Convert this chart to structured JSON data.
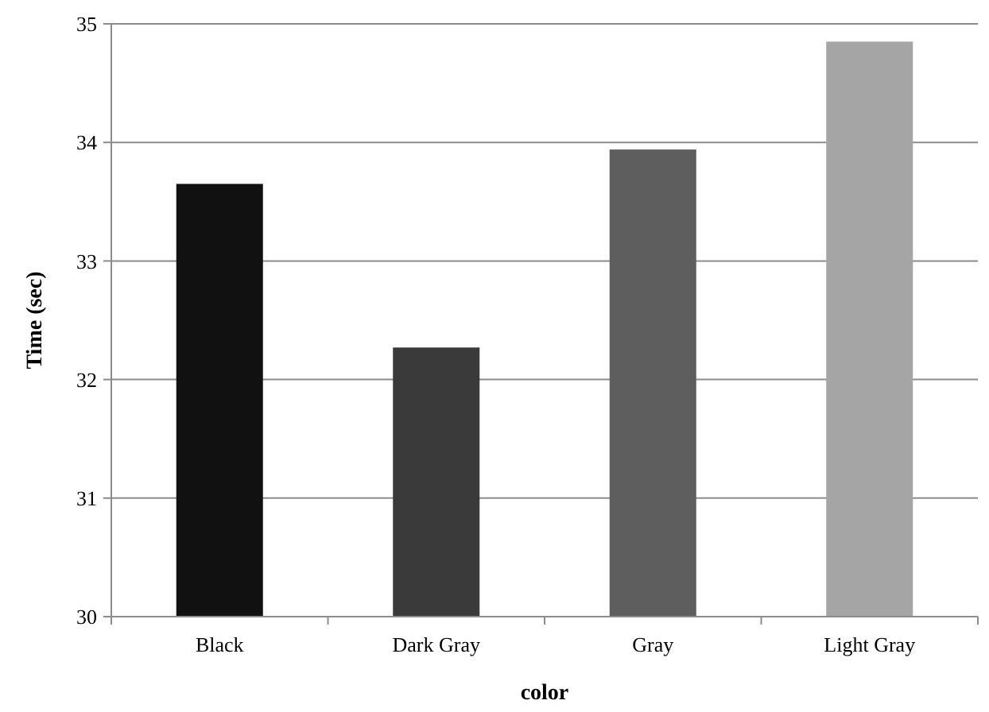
{
  "chart_data": {
    "type": "bar",
    "xlabel": "color",
    "ylabel": "Time (sec)",
    "categories": [
      "Black",
      "Dark Gray",
      "Gray",
      "Light Gray"
    ],
    "values": [
      33.65,
      32.27,
      33.94,
      34.85
    ],
    "colors": [
      "#111111",
      "#3a3a3a",
      "#5e5e5e",
      "#a5a5a5"
    ],
    "ylim": [
      30,
      35
    ],
    "yticks": [
      30,
      31,
      32,
      33,
      34,
      35
    ],
    "grid": "y"
  }
}
